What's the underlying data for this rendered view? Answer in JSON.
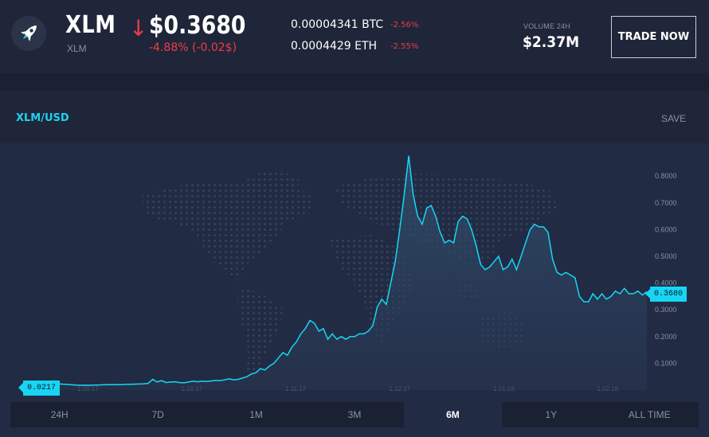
{
  "header": {
    "logo_icon": "rocket-icon",
    "symbol": "XLM",
    "symbol_sub": "XLM",
    "direction_icon": "down-arrow-icon",
    "price": "$0.3680",
    "price_change": "-4.88% (-0.02$)",
    "pairs": [
      {
        "value": "0.00004341 BTC",
        "change": "-2.56%"
      },
      {
        "value": "0.0004429 ETH",
        "change": "-2.55%"
      }
    ],
    "volume_label": "VOLUME 24H",
    "volume_value": "$2.37M",
    "trade_button": "TRADE NOW"
  },
  "chart_header": {
    "pair_title": "XLM/USD",
    "save_label": "SAVE"
  },
  "colors": {
    "accent": "#1fd1f0",
    "negative": "#ee3b46",
    "background": "#1c2337"
  },
  "chart_data": {
    "type": "area",
    "title": "",
    "xlabel": "",
    "ylabel": "",
    "ylim": [
      0,
      0.8
    ],
    "y_ticks": [
      "0.1000",
      "0.2000",
      "0.3000",
      "0.4000",
      "0.5000",
      "0.6000",
      "0.7000",
      "0.8000"
    ],
    "x_ticks": [
      "1.09.17",
      "1.10.17",
      "1.11.17",
      "1.12.17",
      "1.01.18",
      "1.02.18"
    ],
    "current_value_label": "0.3680",
    "start_value_label": "0.0217",
    "series": [
      {
        "values": [
          0.0217,
          0.0215,
          0.0212,
          0.022,
          0.0218,
          0.0208,
          0.0215,
          0.0225,
          0.0235,
          0.022,
          0.021,
          0.0195,
          0.0185,
          0.018,
          0.0182,
          0.018,
          0.0185,
          0.019,
          0.0195,
          0.02,
          0.0205,
          0.0198,
          0.02,
          0.021,
          0.0215,
          0.022,
          0.0225,
          0.023,
          0.025,
          0.04,
          0.03,
          0.035,
          0.028,
          0.03,
          0.031,
          0.028,
          0.027,
          0.03,
          0.033,
          0.031,
          0.033,
          0.032,
          0.034,
          0.036,
          0.035,
          0.038,
          0.042,
          0.038,
          0.04,
          0.045,
          0.05,
          0.06,
          0.065,
          0.08,
          0.075,
          0.09,
          0.1,
          0.12,
          0.14,
          0.13,
          0.16,
          0.18,
          0.21,
          0.23,
          0.26,
          0.25,
          0.22,
          0.23,
          0.19,
          0.21,
          0.19,
          0.2,
          0.19,
          0.2,
          0.2,
          0.21,
          0.21,
          0.22,
          0.24,
          0.31,
          0.34,
          0.32,
          0.4,
          0.48,
          0.6,
          0.73,
          0.876,
          0.73,
          0.65,
          0.62,
          0.68,
          0.69,
          0.65,
          0.59,
          0.55,
          0.56,
          0.55,
          0.63,
          0.65,
          0.64,
          0.6,
          0.54,
          0.47,
          0.45,
          0.46,
          0.48,
          0.5,
          0.45,
          0.46,
          0.49,
          0.45,
          0.5,
          0.55,
          0.6,
          0.62,
          0.61,
          0.61,
          0.59,
          0.49,
          0.44,
          0.43,
          0.44,
          0.43,
          0.42,
          0.35,
          0.33,
          0.33,
          0.36,
          0.34,
          0.36,
          0.34,
          0.35,
          0.37,
          0.36,
          0.38,
          0.36,
          0.36,
          0.37,
          0.355,
          0.368
        ]
      }
    ]
  },
  "time_ranges": [
    {
      "label": "24H",
      "active": false
    },
    {
      "label": "7D",
      "active": false
    },
    {
      "label": "1M",
      "active": false
    },
    {
      "label": "3M",
      "active": false
    },
    {
      "label": "6M",
      "active": true
    },
    {
      "label": "1Y",
      "active": false
    },
    {
      "label": "ALL TIME",
      "active": false
    }
  ]
}
